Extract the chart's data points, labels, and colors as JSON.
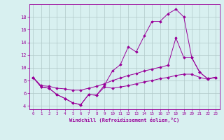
{
  "xlabel": "Windchill (Refroidissement éolien,°C)",
  "x": [
    0,
    1,
    2,
    3,
    4,
    5,
    6,
    7,
    8,
    9,
    10,
    11,
    12,
    13,
    14,
    15,
    16,
    17,
    18,
    19,
    20,
    21,
    22,
    23
  ],
  "line_top": [
    8.5,
    7.0,
    6.8,
    5.8,
    5.2,
    4.5,
    4.2,
    5.8,
    5.7,
    7.3,
    9.5,
    10.5,
    13.3,
    12.5,
    15.0,
    17.3,
    17.3,
    18.5,
    19.2,
    18.0,
    11.6,
    9.3,
    8.3,
    8.5
  ],
  "line_mid": [
    8.5,
    7.2,
    7.1,
    6.8,
    6.7,
    6.5,
    6.5,
    6.8,
    7.1,
    7.5,
    8.0,
    8.4,
    8.8,
    9.1,
    9.5,
    9.8,
    10.1,
    10.4,
    14.7,
    11.6,
    11.6,
    9.3,
    8.3,
    8.5
  ],
  "line_bot": [
    8.5,
    7.0,
    6.8,
    5.8,
    5.2,
    4.5,
    4.2,
    5.8,
    5.7,
    7.0,
    6.8,
    7.0,
    7.2,
    7.5,
    7.8,
    8.0,
    8.3,
    8.5,
    8.8,
    9.0,
    9.0,
    8.5,
    8.2,
    8.5
  ],
  "color": "#990099",
  "bg_color": "#d8f0f0",
  "grid_color": "#b0c8c8",
  "xlim": [
    -0.5,
    23.5
  ],
  "ylim": [
    3.5,
    20.0
  ],
  "yticks": [
    4,
    6,
    8,
    10,
    12,
    14,
    16,
    18
  ],
  "xticks": [
    0,
    1,
    2,
    3,
    4,
    5,
    6,
    7,
    8,
    9,
    10,
    11,
    12,
    13,
    14,
    15,
    16,
    17,
    18,
    19,
    20,
    21,
    22,
    23
  ]
}
